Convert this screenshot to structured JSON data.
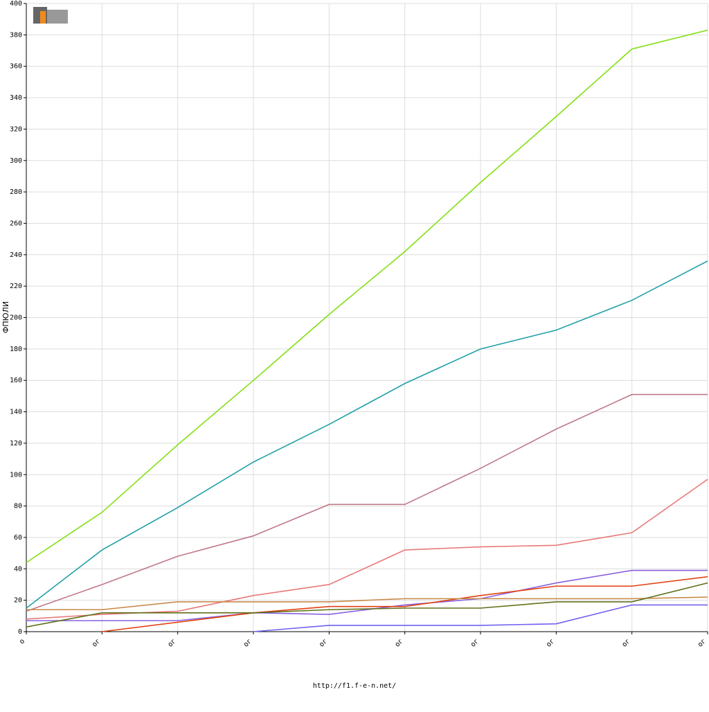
{
  "chart_data": {
    "type": "line",
    "y_label": "ФПЮЛИ",
    "footer": "http://f1.f-e-n.net/",
    "categories": [
      "о",
      "ог",
      "ог",
      "ог",
      "ог",
      "ог",
      "ог",
      "ог",
      "ог",
      "ог"
    ],
    "ylim": [
      0,
      400
    ],
    "yticks": [
      0,
      20,
      40,
      60,
      80,
      100,
      120,
      140,
      160,
      180,
      200,
      220,
      240,
      260,
      280,
      300,
      320,
      340,
      360,
      380,
      400
    ],
    "grid": true,
    "series": [
      {
        "color": "#80e010",
        "values": [
          44,
          76,
          119,
          160,
          202,
          242,
          286,
          328,
          371,
          383
        ]
      },
      {
        "color": "#20a0a8",
        "values": [
          15,
          52,
          79,
          108,
          132,
          158,
          180,
          192,
          211,
          236
        ]
      },
      {
        "color": "#c07888",
        "values": [
          13,
          30,
          48,
          61,
          81,
          81,
          104,
          129,
          151,
          151
        ]
      },
      {
        "color": "#e87878",
        "values": [
          8,
          11,
          13,
          23,
          30,
          52,
          54,
          55,
          63,
          97
        ]
      },
      {
        "color": "#8860e0",
        "values": [
          7,
          7,
          7,
          12,
          11,
          17,
          21,
          31,
          39,
          39
        ]
      },
      {
        "color": "#e04010",
        "values": [
          null,
          0,
          6,
          12,
          16,
          16,
          23,
          29,
          29,
          35
        ]
      },
      {
        "color": "#c88848",
        "values": [
          14,
          14,
          19,
          19,
          19,
          21,
          21,
          21,
          21,
          22
        ]
      },
      {
        "color": "#607018",
        "values": [
          3,
          12,
          12,
          12,
          14,
          15,
          15,
          19,
          19,
          31
        ]
      },
      {
        "color": "#7060f0",
        "values": [
          null,
          null,
          null,
          0,
          4,
          4,
          4,
          5,
          17,
          17
        ]
      }
    ]
  }
}
